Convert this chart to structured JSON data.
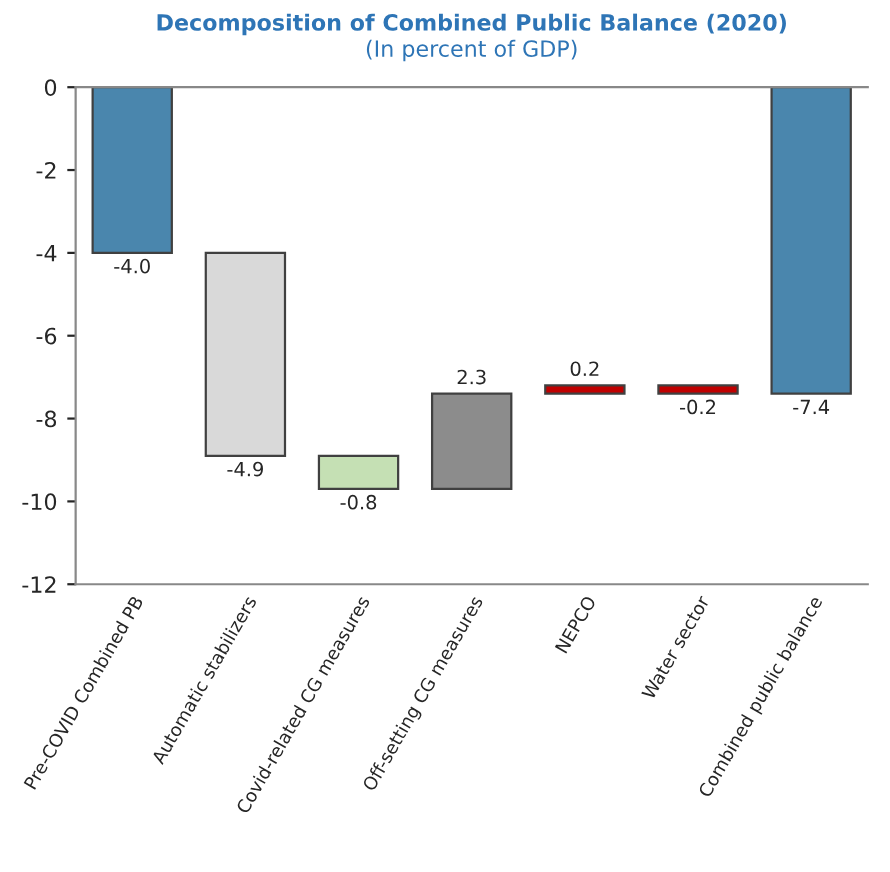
{
  "chart_data": {
    "type": "bar",
    "title": "Decomposition of Combined Public Balance (2020)",
    "subtitle": "(In percent of GDP)",
    "categories": [
      "Pre-COVID Combined PB",
      "Automatic stabilizers",
      "Covid-related CG measures",
      "Off-setting CG measures",
      "NEPCO",
      "Water sector",
      "Combined public balance"
    ],
    "values": [
      -4.0,
      -4.9,
      -0.8,
      2.3,
      0.2,
      -0.2,
      -7.4
    ],
    "base": [
      0,
      -4.0,
      -8.9,
      -9.7,
      -7.4,
      -7.2,
      0
    ],
    "colors": [
      "#4a86ad",
      "#d9d9d9",
      "#c5e0b4",
      "#8c8c8c",
      "#c00000",
      "#c00000",
      "#4a86ad"
    ],
    "value_labels": [
      "-4.0",
      "-4.9",
      "-0.8",
      "2.3",
      "0.2",
      "-0.2",
      "-7.4"
    ],
    "ylim": [
      -12,
      0
    ],
    "yticks": [
      -12,
      -10,
      -8,
      -6,
      -4,
      -2,
      0
    ],
    "grid": false,
    "legend": false
  }
}
